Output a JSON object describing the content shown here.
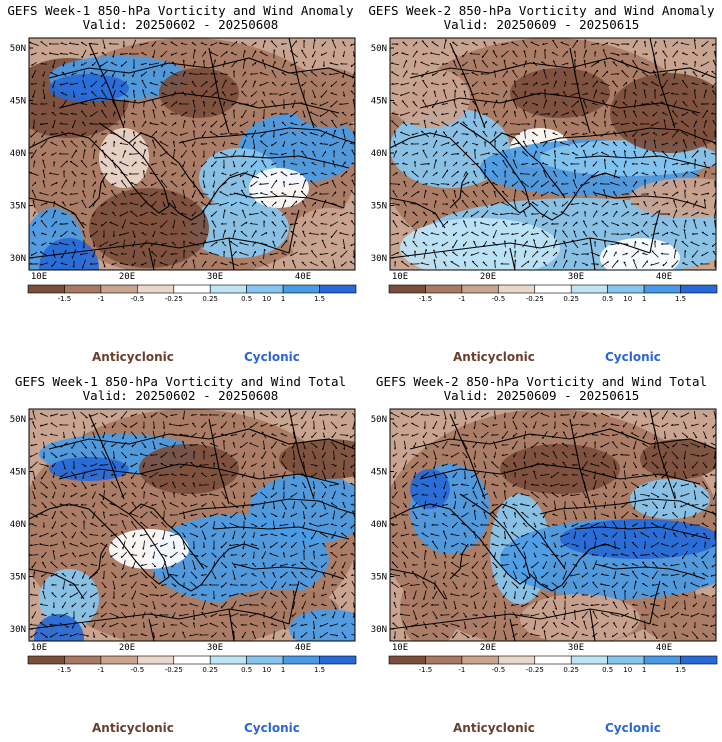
{
  "colors": {
    "dark_brown": "#7a4e3c",
    "mid_brown": "#a87963",
    "light_brown": "#c9a490",
    "pale": "#ead7cb",
    "white": "#ffffff",
    "pale_blue": "#bfe4f6",
    "light_blue": "#86c5ef",
    "mid_blue": "#4a9be6",
    "dark_blue": "#2769d6",
    "anticyclonic_label": "#6b3f2e",
    "cyclonic_label": "#2a66d4"
  },
  "colorbar": {
    "ticks": [
      "-1.5",
      "-1",
      "-0.5",
      "-0.25",
      "0.25",
      "0.5",
      "1",
      "1.5"
    ],
    "scale_note": "10"
  },
  "panels": [
    {
      "title": "GEFS Week-1 850-hPa Vorticity and Wind Anomaly",
      "valid": "Valid: 20250602 - 20250608",
      "y_ticks": [
        "50N",
        "45N",
        "40N",
        "35N",
        "30N"
      ],
      "x_ticks": [
        "10E",
        "20E",
        "30E",
        "40E"
      ],
      "anticyclonic": "Anticyclonic",
      "cyclonic": "Cyclonic"
    },
    {
      "title": "GEFS Week-2 850-hPa Vorticity and Wind Anomaly",
      "valid": "Valid: 20250609 - 20250615",
      "y_ticks": [
        "50N",
        "45N",
        "40N",
        "35N",
        "30N"
      ],
      "x_ticks": [
        "10E",
        "20E",
        "30E",
        "40E"
      ],
      "anticyclonic": "Anticyclonic",
      "cyclonic": "Cyclonic"
    },
    {
      "title": "GEFS Week-1 850-hPa Vorticity and Wind Total",
      "valid": "Valid: 20250602 - 20250608",
      "y_ticks": [
        "50N",
        "45N",
        "40N",
        "35N",
        "30N"
      ],
      "x_ticks": [
        "10E",
        "20E",
        "30E",
        "40E"
      ],
      "anticyclonic": "Anticyclonic",
      "cyclonic": "Cyclonic"
    },
    {
      "title": "GEFS Week-2 850-hPa Vorticity and Wind Total",
      "valid": "Valid: 20250609 - 20250615",
      "y_ticks": [
        "50N",
        "45N",
        "40N",
        "35N",
        "30N"
      ],
      "x_ticks": [
        "10E",
        "20E",
        "30E",
        "40E"
      ],
      "anticyclonic": "Anticyclonic",
      "cyclonic": "Cyclonic"
    }
  ]
}
